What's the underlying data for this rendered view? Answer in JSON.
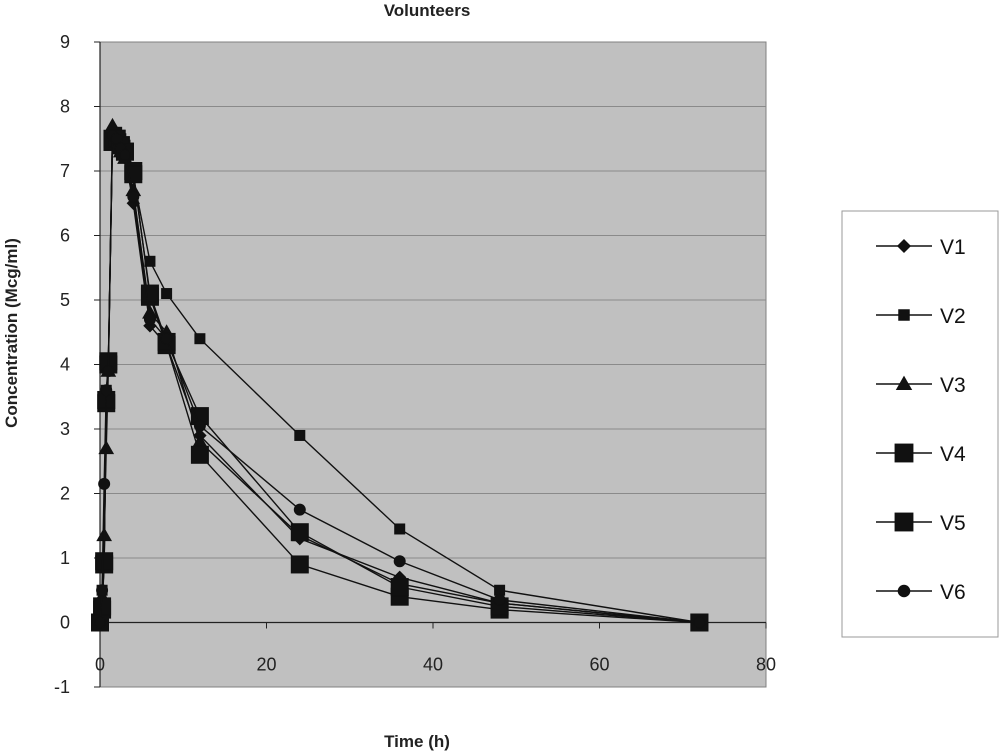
{
  "chart_data": {
    "type": "line",
    "title": "Volunteers",
    "xlabel": "Time (h)",
    "ylabel": "Concentration (Mcg/ml)",
    "xlim": [
      0,
      80
    ],
    "ylim": [
      -1,
      9
    ],
    "xticks": [
      0,
      20,
      40,
      60,
      80
    ],
    "yticks": [
      -1,
      0,
      1,
      2,
      3,
      4,
      5,
      6,
      7,
      8,
      9
    ],
    "grid": "horizontal",
    "legend_position": "right",
    "plot_background": "#c0c0c0",
    "line_color": "#111111",
    "series": [
      {
        "name": "V1",
        "marker": "diamond",
        "x": [
          0,
          0.25,
          0.5,
          0.75,
          1,
          1.5,
          2,
          2.5,
          3,
          4,
          6,
          8,
          12,
          24,
          36,
          48,
          72
        ],
        "y": [
          0,
          0.3,
          0.9,
          3.4,
          4.0,
          7.6,
          7.5,
          7.3,
          7.2,
          6.5,
          4.6,
          4.3,
          2.9,
          1.3,
          0.7,
          0.3,
          0
        ]
      },
      {
        "name": "V2",
        "marker": "square-small",
        "x": [
          0,
          0.25,
          0.5,
          0.75,
          1,
          1.5,
          2,
          2.5,
          3,
          4,
          6,
          8,
          12,
          24,
          36,
          48,
          72
        ],
        "y": [
          0,
          0.5,
          0.9,
          3.6,
          4.0,
          7.5,
          7.6,
          7.5,
          7.4,
          6.9,
          5.6,
          5.1,
          4.4,
          2.9,
          1.45,
          0.5,
          0
        ]
      },
      {
        "name": "V3",
        "marker": "triangle",
        "x": [
          0,
          0.25,
          0.5,
          0.75,
          1,
          1.5,
          2,
          2.5,
          3,
          4,
          6,
          8,
          12,
          24,
          36,
          48,
          72
        ],
        "y": [
          0,
          0.4,
          1.35,
          2.7,
          3.9,
          7.7,
          7.5,
          7.3,
          7.2,
          6.7,
          4.8,
          4.5,
          2.8,
          1.35,
          0.6,
          0.3,
          0
        ]
      },
      {
        "name": "V4",
        "marker": "square-large",
        "x": [
          0,
          0.25,
          0.5,
          0.75,
          1,
          1.5,
          2,
          2.5,
          3,
          4,
          6,
          8,
          12,
          24,
          36,
          48,
          72
        ],
        "y": [
          0,
          0.2,
          0.9,
          3.4,
          4.0,
          7.5,
          7.5,
          7.4,
          7.3,
          7.0,
          5.05,
          4.3,
          2.6,
          0.9,
          0.4,
          0.2,
          0
        ]
      },
      {
        "name": "V5",
        "marker": "square-large",
        "x": [
          0,
          0.25,
          0.5,
          0.75,
          1,
          1.5,
          2,
          2.5,
          3,
          4,
          6,
          8,
          12,
          24,
          36,
          48,
          72
        ],
        "y": [
          0,
          0.25,
          0.95,
          3.45,
          4.05,
          7.45,
          7.5,
          7.4,
          7.3,
          6.95,
          5.1,
          4.35,
          3.2,
          1.4,
          0.55,
          0.25,
          0
        ]
      },
      {
        "name": "V6",
        "marker": "circle",
        "x": [
          0,
          0.25,
          0.5,
          0.75,
          1,
          1.5,
          2,
          2.5,
          3,
          4,
          6,
          8,
          12,
          24,
          36,
          48,
          72
        ],
        "y": [
          0,
          0.5,
          2.15,
          3.6,
          3.9,
          7.55,
          7.5,
          7.35,
          7.25,
          6.6,
          4.7,
          4.4,
          3.05,
          1.75,
          0.95,
          0.35,
          0
        ]
      }
    ]
  }
}
